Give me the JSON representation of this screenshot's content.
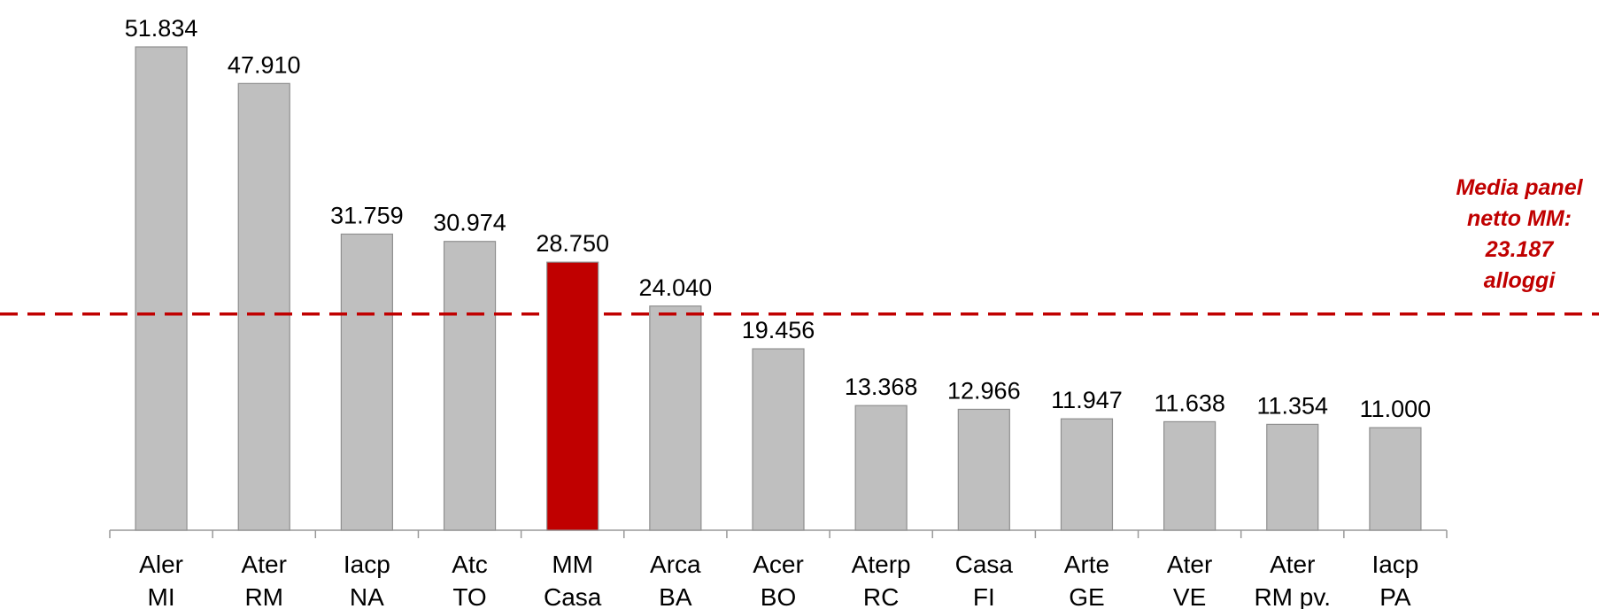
{
  "chart_data": {
    "type": "bar",
    "categories": [
      "Aler\nMI",
      "Ater\nRM",
      "Iacp\nNA",
      "Atc\nTO",
      "MM\nCasa",
      "Arca\nBA",
      "Acer\nBO",
      "Aterp\nRC",
      "Casa\nFI",
      "Arte\nGE",
      "Ater\nVE",
      "Ater\nRM pv.",
      "Iacp\nPA"
    ],
    "values": [
      51834,
      47910,
      31759,
      30974,
      28750,
      24040,
      19456,
      13368,
      12966,
      11947,
      11638,
      11354,
      11000
    ],
    "value_labels": [
      "51.834",
      "47.910",
      "31.759",
      "30.974",
      "28.750",
      "24.040",
      "19.456",
      "13.368",
      "12.966",
      "11.947",
      "11.638",
      "11.354",
      "11.000"
    ],
    "colors": [
      "#bfbfbf",
      "#bfbfbf",
      "#bfbfbf",
      "#bfbfbf",
      "#c00000",
      "#bfbfbf",
      "#bfbfbf",
      "#bfbfbf",
      "#bfbfbf",
      "#bfbfbf",
      "#bfbfbf",
      "#bfbfbf",
      "#bfbfbf"
    ],
    "reference_line": {
      "value": 23187,
      "label": "Media panel\nnetto MM:\n23.187\nalloggi",
      "color": "#c00000"
    }
  }
}
